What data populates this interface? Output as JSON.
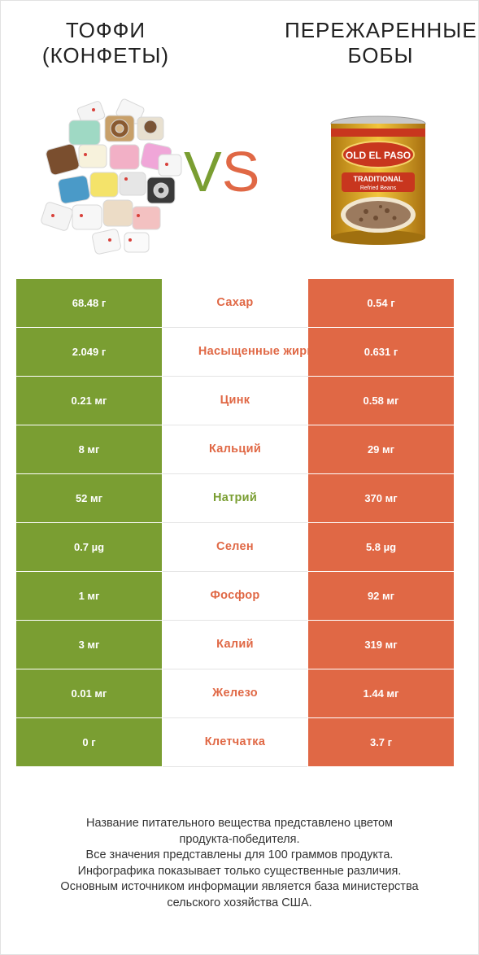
{
  "header": {
    "left_title_line1": "Тоффи",
    "left_title_line2": "(конфеты)",
    "right_title_line1": "Пережаренные",
    "right_title_line2": "бобы",
    "vs_v": "V",
    "vs_s": "S"
  },
  "colors": {
    "left": "#7a9e32",
    "right": "#e06845"
  },
  "can_label": {
    "brand": "OLD EL PASO",
    "line1": "TRADITIONAL",
    "line2": "Refried Beans"
  },
  "rows": [
    {
      "left": "68.48 г",
      "name": "Сахар",
      "right": "0.54 г",
      "winner": "right"
    },
    {
      "left": "2.049 г",
      "name": "Насыщенные жиры",
      "right": "0.631 г",
      "winner": "right"
    },
    {
      "left": "0.21 мг",
      "name": "Цинк",
      "right": "0.58 мг",
      "winner": "right"
    },
    {
      "left": "8 мг",
      "name": "Кальций",
      "right": "29 мг",
      "winner": "right"
    },
    {
      "left": "52 мг",
      "name": "Натрий",
      "right": "370 мг",
      "winner": "left"
    },
    {
      "left": "0.7 µg",
      "name": "Селен",
      "right": "5.8 µg",
      "winner": "right"
    },
    {
      "left": "1 мг",
      "name": "Фосфор",
      "right": "92 мг",
      "winner": "right"
    },
    {
      "left": "3 мг",
      "name": "Калий",
      "right": "319 мг",
      "winner": "right"
    },
    {
      "left": "0.01 мг",
      "name": "Железо",
      "right": "1.44 мг",
      "winner": "right"
    },
    {
      "left": "0 г",
      "name": "Клетчатка",
      "right": "3.7 г",
      "winner": "right"
    }
  ],
  "footer": [
    "Название питательного вещества представлено цветом",
    "продукта-победителя.",
    "Все значения представлены для 100 граммов продукта.",
    "Инфографика показывает только существенные различия.",
    "Основным источником информации является база министерства",
    "сельского хозяйства США."
  ]
}
